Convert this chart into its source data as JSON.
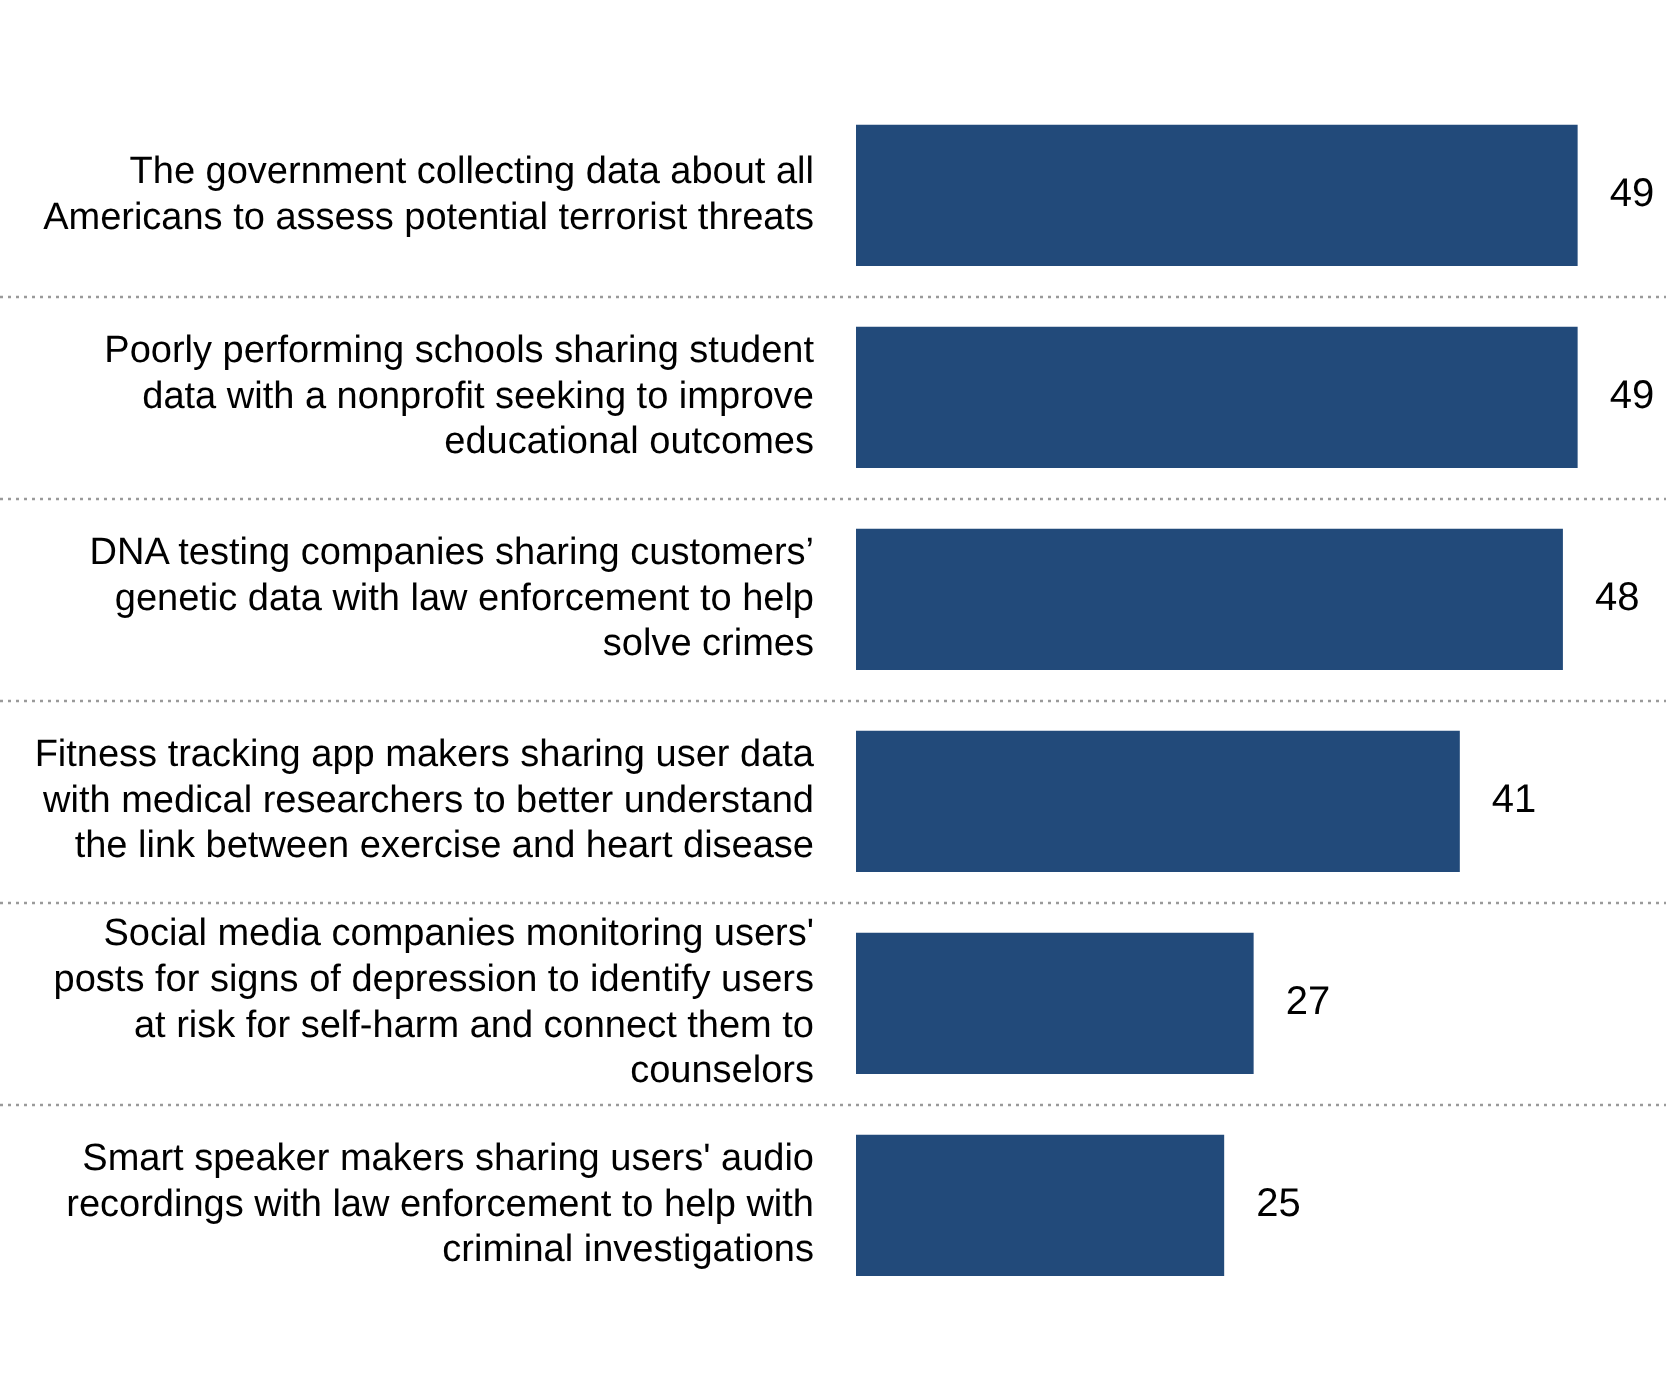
{
  "chart_data": {
    "type": "bar",
    "orientation": "horizontal",
    "categories": [
      "The government collecting data about all Americans to assess potential terrorist threats",
      "Poorly performing schools sharing student data with a nonprofit seeking to improve educational outcomes",
      "DNA testing companies sharing customers’ genetic data with law enforcement to help solve crimes",
      "Fitness tracking app makers sharing user data with medical researchers to better understand the link between exercise and heart disease",
      "Social media companies monitoring users' posts for signs of depression to identify users at risk for self-harm and connect them to counselors",
      "Smart speaker makers sharing users' audio recordings with law enforcement to help with criminal investigations"
    ],
    "values": [
      49,
      49,
      48,
      41,
      27,
      25
    ],
    "color": "#224a7a",
    "xlim": [
      0,
      55
    ],
    "data_labels": true,
    "grid": "y",
    "tick_labels": "y",
    "legend": false
  }
}
